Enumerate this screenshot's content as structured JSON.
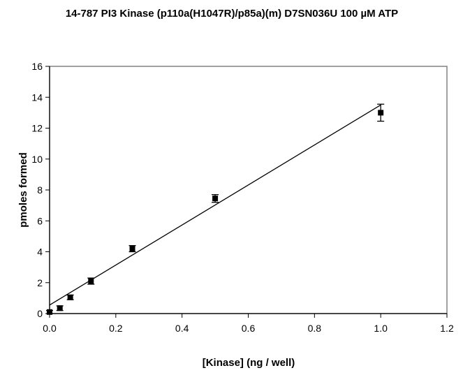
{
  "chart_data": {
    "type": "scatter",
    "title": "14-787 PI3 Kinase (p110a(H1047R)/p85a)(m) D7SN036U 100 µM ATP",
    "xlabel": "[Kinase] (ng / well)",
    "ylabel": "pmoles formed",
    "xlim": [
      0,
      1.2
    ],
    "ylim": [
      0,
      16
    ],
    "x_ticks": [
      0.0,
      0.2,
      0.4,
      0.6,
      0.8,
      1.0,
      1.2
    ],
    "x_tick_labels": [
      "0.0",
      "0.2",
      "0.4",
      "0.6",
      "0.8",
      "1.0",
      "1.2"
    ],
    "y_ticks": [
      0,
      2,
      4,
      6,
      8,
      10,
      12,
      14,
      16
    ],
    "y_tick_labels": [
      "0",
      "2",
      "4",
      "6",
      "8",
      "10",
      "12",
      "14",
      "16"
    ],
    "grid": false,
    "legend": "none",
    "series": [
      {
        "x": [
          0.0,
          0.031,
          0.0625,
          0.125,
          0.25,
          0.5,
          1.0
        ],
        "y": [
          0.1,
          0.35,
          1.05,
          2.1,
          4.2,
          7.45,
          13.0
        ],
        "error": [
          0.1,
          0.15,
          0.15,
          0.2,
          0.2,
          0.25,
          0.55
        ],
        "marker": "square",
        "color": "#000000"
      }
    ],
    "trendline": {
      "x": [
        0.0,
        1.0
      ],
      "y": [
        0.55,
        13.5
      ],
      "color": "#000000"
    }
  }
}
